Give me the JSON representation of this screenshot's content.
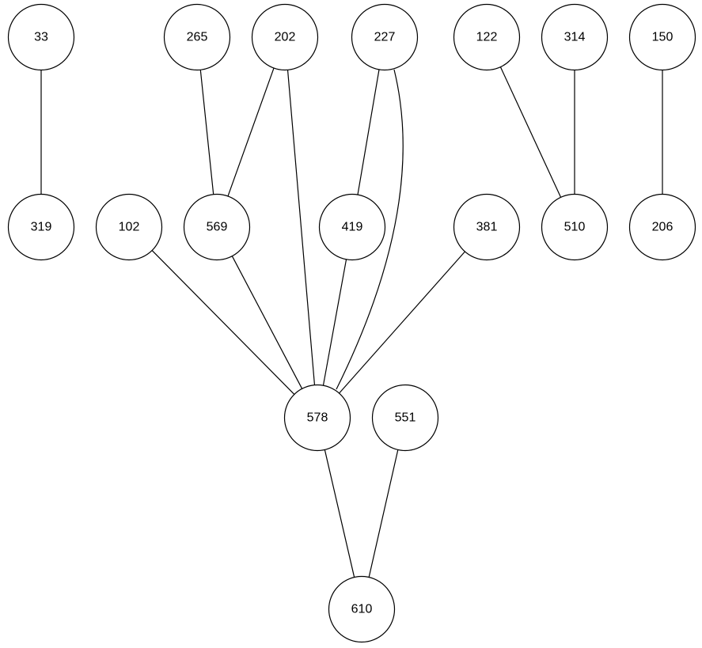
{
  "diagram": {
    "type": "graph",
    "colors": {
      "node_fill": "#ffffff",
      "stroke": "#000000",
      "text": "#000000"
    },
    "nodes": [
      {
        "id": "33",
        "label": "33",
        "layer": 0
      },
      {
        "id": "265",
        "label": "265",
        "layer": 0
      },
      {
        "id": "202",
        "label": "202",
        "layer": 0
      },
      {
        "id": "227",
        "label": "227",
        "layer": 0
      },
      {
        "id": "122",
        "label": "122",
        "layer": 0
      },
      {
        "id": "314",
        "label": "314",
        "layer": 0
      },
      {
        "id": "150",
        "label": "150",
        "layer": 0
      },
      {
        "id": "319",
        "label": "319",
        "layer": 1
      },
      {
        "id": "102",
        "label": "102",
        "layer": 1
      },
      {
        "id": "569",
        "label": "569",
        "layer": 1
      },
      {
        "id": "419",
        "label": "419",
        "layer": 1
      },
      {
        "id": "381",
        "label": "381",
        "layer": 1
      },
      {
        "id": "510",
        "label": "510",
        "layer": 1
      },
      {
        "id": "206",
        "label": "206",
        "layer": 1
      },
      {
        "id": "578",
        "label": "578",
        "layer": 2
      },
      {
        "id": "551",
        "label": "551",
        "layer": 2
      },
      {
        "id": "610",
        "label": "610",
        "layer": 3
      }
    ],
    "edges": [
      {
        "source": "33",
        "target": "319"
      },
      {
        "source": "265",
        "target": "569"
      },
      {
        "source": "202",
        "target": "569"
      },
      {
        "source": "202",
        "target": "578"
      },
      {
        "source": "227",
        "target": "419"
      },
      {
        "source": "227",
        "target": "578"
      },
      {
        "source": "122",
        "target": "510"
      },
      {
        "source": "314",
        "target": "510"
      },
      {
        "source": "150",
        "target": "206"
      },
      {
        "source": "102",
        "target": "578"
      },
      {
        "source": "569",
        "target": "578"
      },
      {
        "source": "419",
        "target": "578"
      },
      {
        "source": "381",
        "target": "578"
      },
      {
        "source": "578",
        "target": "610"
      },
      {
        "source": "551",
        "target": "610"
      }
    ]
  }
}
